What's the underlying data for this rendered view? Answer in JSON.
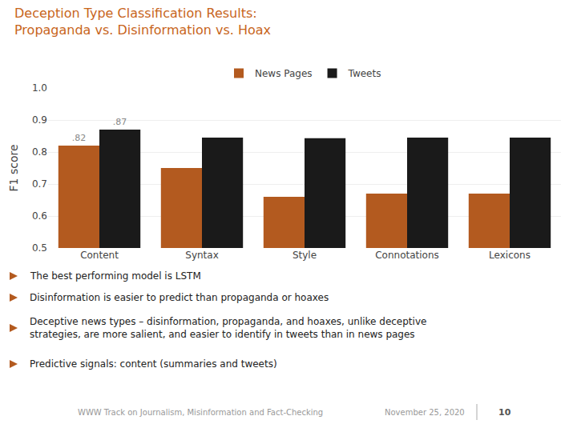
{
  "chart_data": {
    "type": "bar",
    "title": "Deception Type Classification Results:\nPropaganda vs. Disinformation vs. Hoax",
    "categories": [
      "Content",
      "Syntax",
      "Style",
      "Connotations",
      "Lexicons"
    ],
    "series": [
      {
        "name": "News Pages",
        "color": "#B35A1F",
        "values": [
          0.82,
          0.75,
          0.66,
          0.67,
          0.67
        ],
        "value_labels": [
          ".82",
          null,
          null,
          null,
          null
        ]
      },
      {
        "name": "Tweets",
        "color": "#1A1A1A",
        "values": [
          0.87,
          0.845,
          0.843,
          0.845,
          0.845
        ],
        "value_labels": [
          ".87",
          null,
          null,
          null,
          null
        ]
      }
    ],
    "ylabel": "F1 score",
    "ylim": [
      0.5,
      1.0
    ],
    "yticks": [
      0.5,
      0.6,
      0.7,
      0.8,
      0.9,
      {
        "value": 1.0,
        "label": "1.0"
      }
    ],
    "grid": true,
    "legend": "top",
    "annotations": [
      "The best performing model is LSTM",
      "Disinformation is easier to predict than propaganda or hoaxes",
      "Deceptive news types – disinformation, propaganda, and hoaxes, unlike deceptive\nstrategies, are more salient, and easier to identify in tweets than in news pages",
      "Predictive signals: content (summaries and tweets)",
      "WWW Track on Journalism, Misinformation and Fact-Checking",
      "November 25, 2020",
      "10"
    ]
  }
}
